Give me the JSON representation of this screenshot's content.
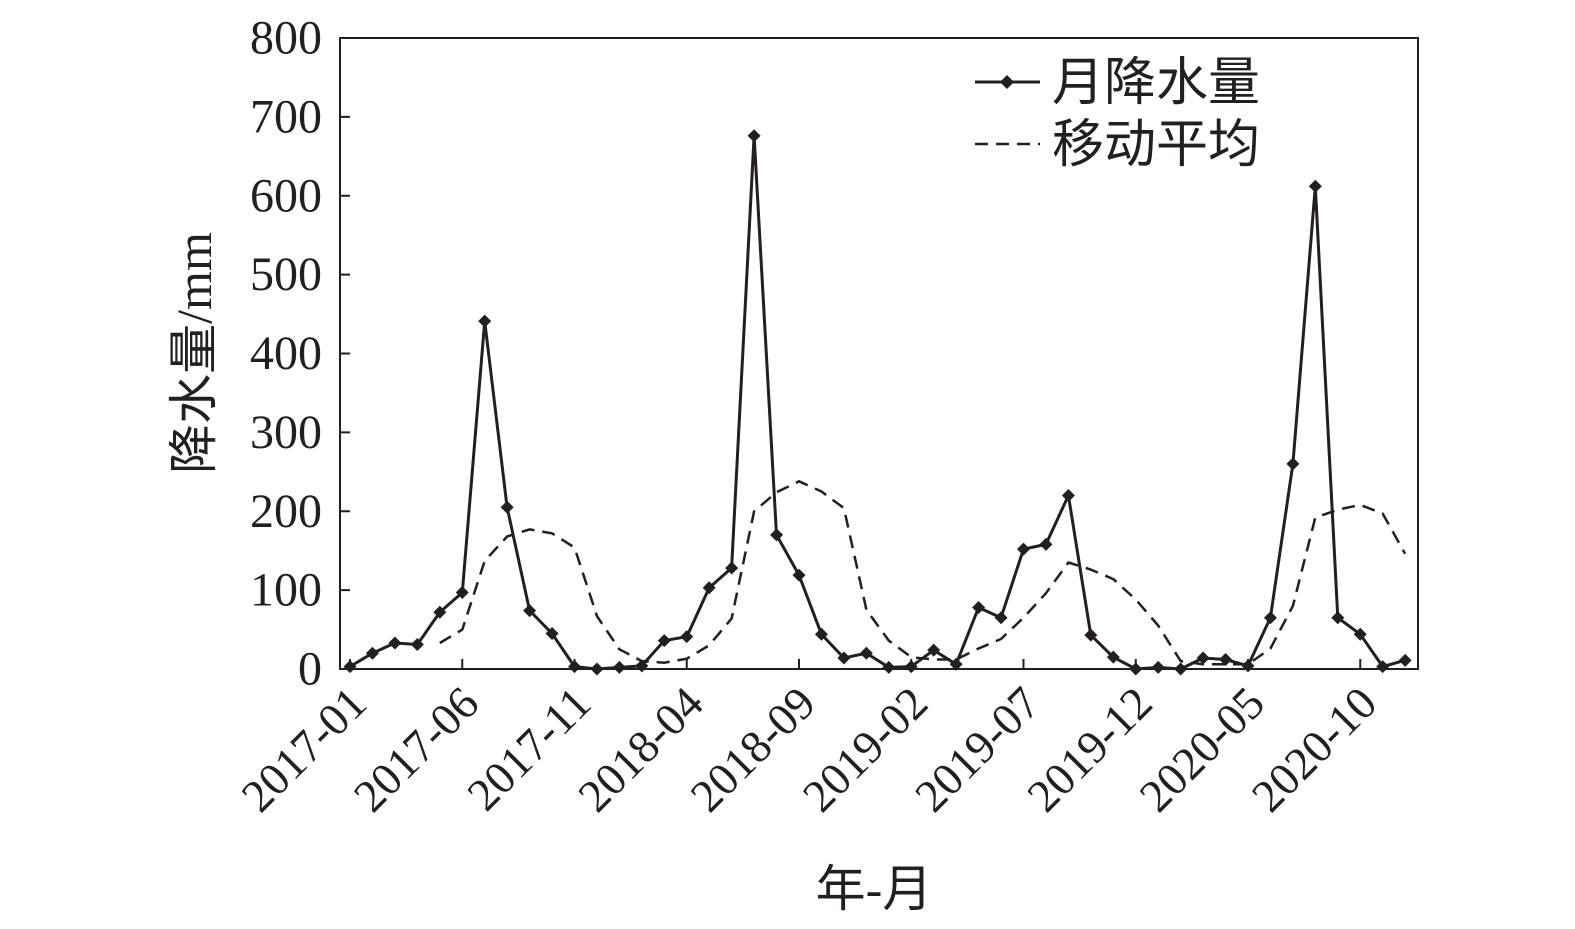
{
  "chart_data": {
    "type": "line",
    "title": "",
    "xlabel": "年-月",
    "ylabel": "降水量/mm",
    "ylim": [
      0,
      800
    ],
    "yticks": [
      0,
      100,
      200,
      300,
      400,
      500,
      600,
      700,
      800
    ],
    "x": [
      "2017-01",
      "2017-02",
      "2017-03",
      "2017-04",
      "2017-05",
      "2017-06",
      "2017-07",
      "2017-08",
      "2017-09",
      "2017-10",
      "2017-11",
      "2017-12",
      "2018-01",
      "2018-02",
      "2018-03",
      "2018-04",
      "2018-05",
      "2018-06",
      "2018-07",
      "2018-08",
      "2018-09",
      "2018-10",
      "2018-11",
      "2018-12",
      "2019-01",
      "2019-02",
      "2019-03",
      "2019-04",
      "2019-05",
      "2019-06",
      "2019-07",
      "2019-08",
      "2019-09",
      "2019-10",
      "2019-11",
      "2019-12",
      "2020-01",
      "2020-02",
      "2020-03",
      "2020-04",
      "2020-05",
      "2020-06",
      "2020-07",
      "2020-08",
      "2020-09",
      "2020-10",
      "2020-11",
      "2020-12"
    ],
    "xtick_labels": [
      "2017-01",
      "2017-06",
      "2017-11",
      "2018-04",
      "2018-09",
      "2019-02",
      "2019-07",
      "2019-12",
      "2020-05",
      "2020-10"
    ],
    "legend_position": "top-right",
    "grid": false,
    "series": [
      {
        "name": "月降水量",
        "style": "solid-diamond",
        "color": "#231f20",
        "values": [
          3,
          20,
          33,
          31,
          72,
          97,
          441,
          205,
          74,
          45,
          3,
          0,
          2,
          4,
          36,
          41,
          103,
          128,
          676,
          170,
          119,
          44,
          14,
          20,
          2,
          3,
          24,
          6,
          78,
          65,
          152,
          158,
          220,
          43,
          15,
          0,
          2,
          0,
          14,
          12,
          4,
          65,
          260,
          612,
          65,
          44,
          3,
          11
        ]
      },
      {
        "name": "移动平均",
        "style": "dashed",
        "color": "#231f20",
        "values": [
          null,
          null,
          null,
          null,
          33,
          50,
          137,
          168,
          177,
          172,
          154,
          67,
          25,
          10,
          8,
          13,
          30,
          64,
          200,
          224,
          238,
          225,
          204,
          75,
          36,
          15,
          12,
          12,
          26,
          38,
          65,
          96,
          135,
          126,
          114,
          88,
          55,
          10,
          6,
          6,
          6,
          26,
          80,
          192,
          202,
          208,
          197,
          146
        ]
      }
    ]
  }
}
